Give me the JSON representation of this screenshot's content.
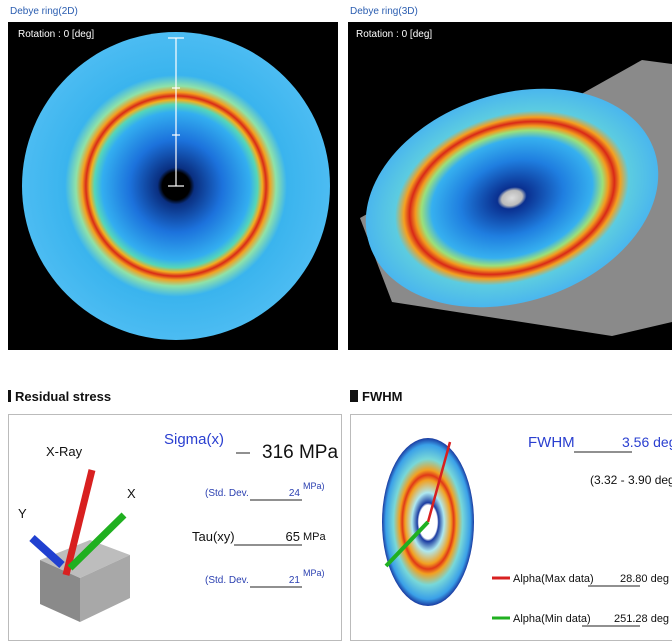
{
  "panels": [
    {
      "title": "Debye ring(2D)",
      "rotation": "Rotation : 0 [deg]"
    },
    {
      "title": "Debye ring(3D)",
      "rotation": "Rotation : 0 [deg]"
    }
  ],
  "residual_stress": {
    "title": "Residual stress",
    "axis_labels": {
      "xray": "X-Ray",
      "y": "Y",
      "x": "X"
    },
    "sigma_label": "Sigma(x)",
    "sigma_value": "316 MPa",
    "sigma_std_label": "(Std. Dev.",
    "sigma_std_value": "24",
    "sigma_std_unit": "MPa)",
    "tau_label": "Tau(xy)",
    "tau_value": "65",
    "tau_unit": "MPa",
    "tau_std_label": "(Std. Dev.",
    "tau_std_value": "21",
    "tau_std_unit": "MPa)"
  },
  "fwhm": {
    "title": "FWHM",
    "label": "FWHM",
    "value": "3.56 deg",
    "range": "(3.32 - 3.90 deg",
    "alpha_max_label": "Alpha(Max data)",
    "alpha_max_value": "28.80 deg",
    "alpha_min_label": "Alpha(Min data)",
    "alpha_min_value": "251.28 deg"
  }
}
